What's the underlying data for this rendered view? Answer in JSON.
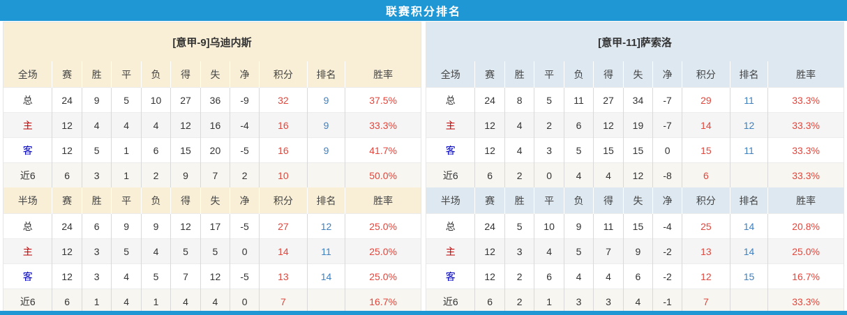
{
  "title": "联赛积分排名",
  "colors": {
    "title_bar": "#1e97d4",
    "left_theme": "#f9efd6",
    "right_theme": "#dde8f1",
    "points_red": "#e2463c",
    "rank_blue": "#3e80c0",
    "home_red": "#c00000",
    "away_blue": "#0000c0"
  },
  "stat_columns": [
    "赛",
    "胜",
    "平",
    "负",
    "得",
    "失",
    "净",
    "积分",
    "排名",
    "胜率"
  ],
  "tables": [
    {
      "team": "[意甲-9]乌迪内斯",
      "theme": "cream",
      "sections": [
        {
          "label": "全场",
          "rows": [
            {
              "label": "总",
              "type": "total",
              "values": [
                "24",
                "9",
                "5",
                "10",
                "27",
                "36",
                "-9",
                "32",
                "9",
                "37.5%"
              ]
            },
            {
              "label": "主",
              "type": "home",
              "values": [
                "12",
                "4",
                "4",
                "4",
                "12",
                "16",
                "-4",
                "16",
                "9",
                "33.3%"
              ]
            },
            {
              "label": "客",
              "type": "away",
              "values": [
                "12",
                "5",
                "1",
                "6",
                "15",
                "20",
                "-5",
                "16",
                "9",
                "41.7%"
              ]
            },
            {
              "label": "近6",
              "type": "last6",
              "values": [
                "6",
                "3",
                "1",
                "2",
                "9",
                "7",
                "2",
                "10",
                "",
                "50.0%"
              ]
            }
          ]
        },
        {
          "label": "半场",
          "rows": [
            {
              "label": "总",
              "type": "total",
              "values": [
                "24",
                "6",
                "9",
                "9",
                "12",
                "17",
                "-5",
                "27",
                "12",
                "25.0%"
              ]
            },
            {
              "label": "主",
              "type": "home",
              "values": [
                "12",
                "3",
                "5",
                "4",
                "5",
                "5",
                "0",
                "14",
                "11",
                "25.0%"
              ]
            },
            {
              "label": "客",
              "type": "away",
              "values": [
                "12",
                "3",
                "4",
                "5",
                "7",
                "12",
                "-5",
                "13",
                "14",
                "25.0%"
              ]
            },
            {
              "label": "近6",
              "type": "last6",
              "values": [
                "6",
                "1",
                "4",
                "1",
                "4",
                "4",
                "0",
                "7",
                "",
                "16.7%"
              ]
            }
          ]
        }
      ]
    },
    {
      "team": "[意甲-11]萨索洛",
      "theme": "blue",
      "sections": [
        {
          "label": "全场",
          "rows": [
            {
              "label": "总",
              "type": "total",
              "values": [
                "24",
                "8",
                "5",
                "11",
                "27",
                "34",
                "-7",
                "29",
                "11",
                "33.3%"
              ]
            },
            {
              "label": "主",
              "type": "home",
              "values": [
                "12",
                "4",
                "2",
                "6",
                "12",
                "19",
                "-7",
                "14",
                "12",
                "33.3%"
              ]
            },
            {
              "label": "客",
              "type": "away",
              "values": [
                "12",
                "4",
                "3",
                "5",
                "15",
                "15",
                "0",
                "15",
                "11",
                "33.3%"
              ]
            },
            {
              "label": "近6",
              "type": "last6",
              "values": [
                "6",
                "2",
                "0",
                "4",
                "4",
                "12",
                "-8",
                "6",
                "",
                "33.3%"
              ]
            }
          ]
        },
        {
          "label": "半场",
          "rows": [
            {
              "label": "总",
              "type": "total",
              "values": [
                "24",
                "5",
                "10",
                "9",
                "11",
                "15",
                "-4",
                "25",
                "14",
                "20.8%"
              ]
            },
            {
              "label": "主",
              "type": "home",
              "values": [
                "12",
                "3",
                "4",
                "5",
                "7",
                "9",
                "-2",
                "13",
                "14",
                "25.0%"
              ]
            },
            {
              "label": "客",
              "type": "away",
              "values": [
                "12",
                "2",
                "6",
                "4",
                "4",
                "6",
                "-2",
                "12",
                "15",
                "16.7%"
              ]
            },
            {
              "label": "近6",
              "type": "last6",
              "values": [
                "6",
                "2",
                "1",
                "3",
                "3",
                "4",
                "-1",
                "7",
                "",
                "33.3%"
              ]
            }
          ]
        }
      ]
    }
  ]
}
